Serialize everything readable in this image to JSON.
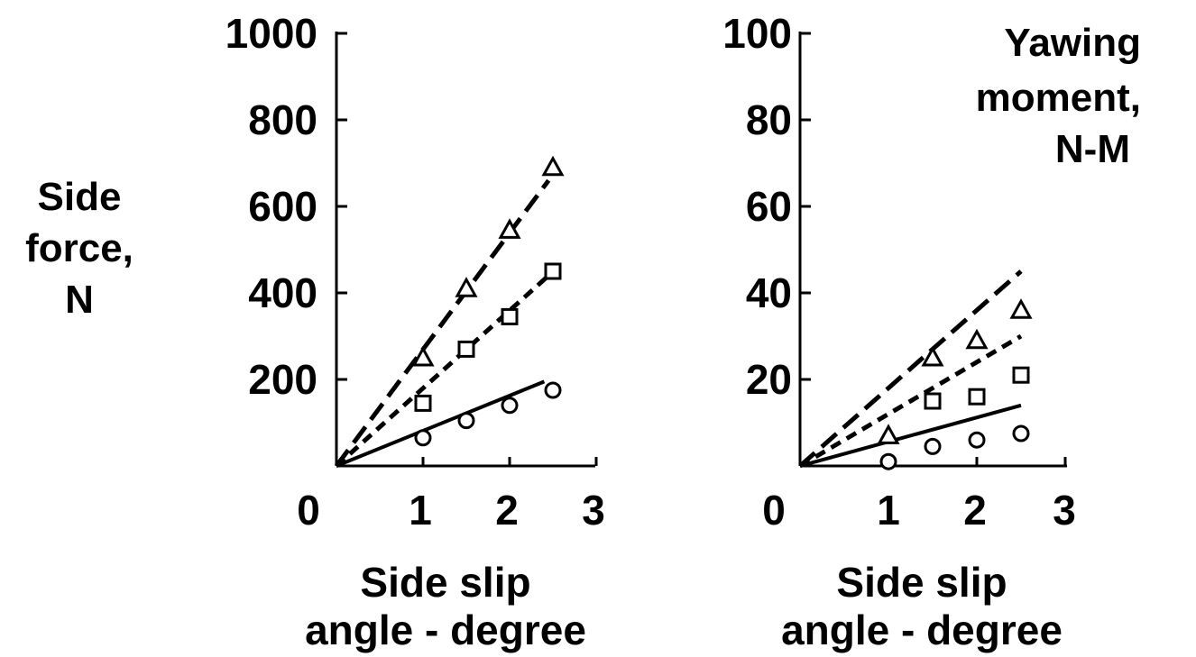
{
  "chart_data": [
    {
      "type": "scatter",
      "title": "",
      "ylabel": [
        "Side",
        "force,",
        "N"
      ],
      "xlabel": [
        "Side slip",
        "angle - degree"
      ],
      "xlim": [
        0,
        3
      ],
      "ylim": [
        0,
        1000
      ],
      "x_ticks": [
        "0",
        "1",
        "2",
        "3"
      ],
      "y_ticks": [
        "200",
        "400",
        "600",
        "800",
        "1000"
      ],
      "grid": false,
      "series": [
        {
          "marker": "triangle",
          "x": [
            1,
            1.5,
            2,
            2.5
          ],
          "values": [
            250,
            410,
            545,
            690
          ]
        },
        {
          "marker": "square",
          "x": [
            1,
            1.5,
            2,
            2.5
          ],
          "values": [
            145,
            270,
            345,
            450
          ]
        },
        {
          "marker": "circle",
          "x": [
            1,
            1.5,
            2,
            2.5
          ],
          "values": [
            65,
            105,
            140,
            175
          ]
        }
      ],
      "lines": [
        {
          "style": "long-dash",
          "x": [
            0,
            2.45
          ],
          "values": [
            0,
            660
          ]
        },
        {
          "style": "short-dash",
          "x": [
            0,
            2.45
          ],
          "values": [
            0,
            440
          ]
        },
        {
          "style": "solid",
          "x": [
            0,
            2.4
          ],
          "values": [
            0,
            195
          ]
        }
      ]
    },
    {
      "type": "scatter",
      "title": "",
      "ylabel": [
        "Yawing",
        "moment,",
        "N-M"
      ],
      "xlabel": [
        "Side slip",
        "angle - degree"
      ],
      "xlim": [
        0,
        3
      ],
      "ylim": [
        0,
        100
      ],
      "x_ticks": [
        "0",
        "1",
        "2",
        "3"
      ],
      "y_ticks": [
        "20",
        "40",
        "60",
        "80",
        "100"
      ],
      "grid": false,
      "series": [
        {
          "marker": "triangle",
          "x": [
            1,
            1.5,
            2,
            2.5
          ],
          "values": [
            7,
            25,
            29,
            36
          ]
        },
        {
          "marker": "square",
          "x": [
            1.5,
            2,
            2.5
          ],
          "values": [
            15,
            16,
            21
          ]
        },
        {
          "marker": "circle",
          "x": [
            1,
            1.5,
            2,
            2.5
          ],
          "values": [
            1,
            4.5,
            6,
            7.5
          ]
        }
      ],
      "lines": [
        {
          "style": "long-dash",
          "x": [
            0,
            2.5
          ],
          "values": [
            0,
            45
          ]
        },
        {
          "style": "short-dash",
          "x": [
            0,
            2.5
          ],
          "values": [
            0,
            30
          ]
        },
        {
          "style": "solid",
          "x": [
            0,
            2.5
          ],
          "values": [
            0,
            14
          ]
        }
      ]
    }
  ]
}
